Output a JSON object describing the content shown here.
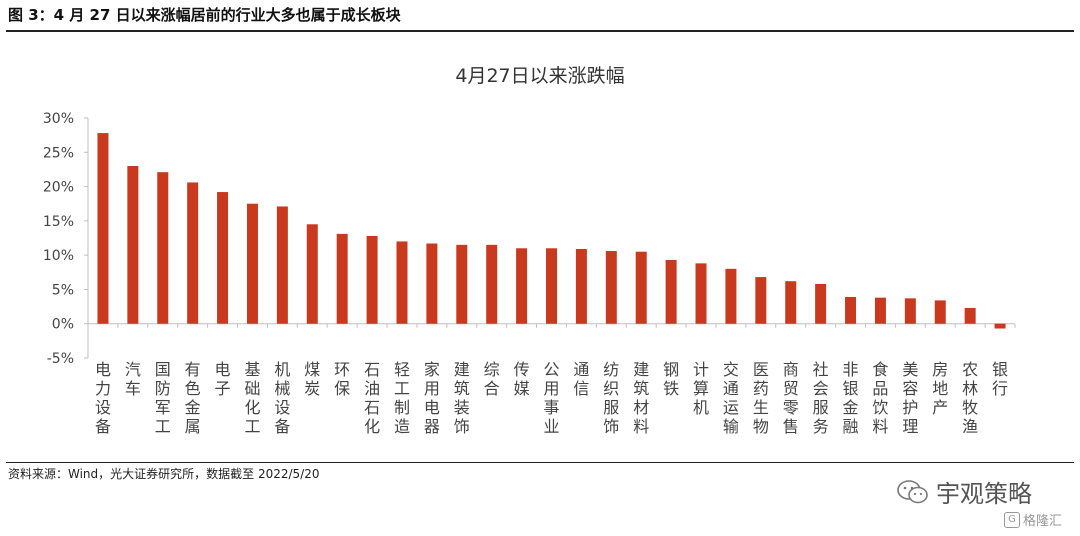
{
  "figure": {
    "header": "图 3：4 月 27 日以来涨幅居前的行业大多也属于成长板块",
    "source": "资料来源：Wind，光大证券研究所，数据截至 2022/5/20",
    "brand": "宇观策略",
    "watermark": "格隆汇",
    "watermark_glyph": "G"
  },
  "colors": {
    "bar": "#C8391E",
    "axis": "#bfbfbf",
    "text": "#444444"
  },
  "chart_data": {
    "type": "bar",
    "title": "4月27日以来涨跌幅",
    "categories": [
      "电力设备",
      "汽车",
      "国防军工",
      "有色金属",
      "电子",
      "基础化工",
      "机械设备",
      "煤炭",
      "环保",
      "石油石化",
      "轻工制造",
      "家用电器",
      "建筑装饰",
      "综合",
      "传媒",
      "公用事业",
      "通信",
      "纺织服饰",
      "建筑材料",
      "钢铁",
      "计算机",
      "交通运输",
      "医药生物",
      "商贸零售",
      "社会服务",
      "非银金融",
      "食品饮料",
      "美容护理",
      "房地产",
      "农林牧渔",
      "银行"
    ],
    "values": [
      27.8,
      23.0,
      22.1,
      20.6,
      19.2,
      17.5,
      17.1,
      14.5,
      13.1,
      12.8,
      12.0,
      11.7,
      11.5,
      11.5,
      11.0,
      11.0,
      10.9,
      10.6,
      10.5,
      9.3,
      8.8,
      8.0,
      6.8,
      6.2,
      5.8,
      3.9,
      3.8,
      3.7,
      3.4,
      2.3,
      -0.7
    ],
    "ylim": [
      -5,
      30
    ],
    "yticks": [
      -5,
      0,
      5,
      10,
      15,
      20,
      25,
      30
    ],
    "ytick_labels": [
      "-5%",
      "0%",
      "5%",
      "10%",
      "15%",
      "20%",
      "25%",
      "30%"
    ],
    "grid": false,
    "xlabel": "",
    "ylabel": ""
  }
}
